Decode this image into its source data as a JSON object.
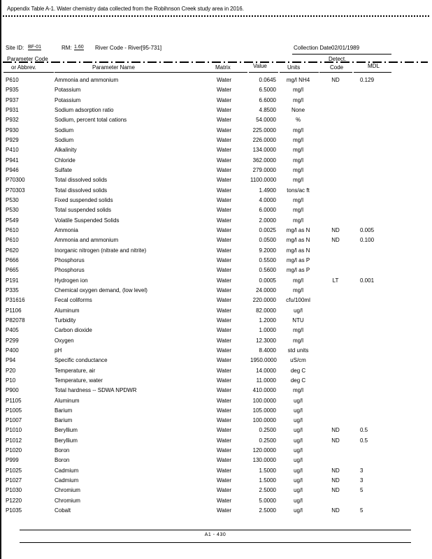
{
  "page": {
    "title": "Appendix Table A-1. Water chemistry data collected from the Robihnson Creek study area in 2016.",
    "footer": "A1 - 430"
  },
  "site_header": {
    "site_id_label": "Site ID:",
    "site_id_value": "BF-01",
    "rm_label": "RM:",
    "rm_value": "1.60",
    "river_code": "River Code - River[95-731]",
    "collection_date_label": "Collection Date",
    "collection_date_value": "02/01/1989"
  },
  "table": {
    "headers": {
      "code_line1": "Parameter Code",
      "code_line2": "or Abbrev.",
      "name": "Parameter Name",
      "matrix": "Matrix",
      "value": "Value",
      "units": "Units",
      "detect_line1": "Detect.",
      "detect_line2": "Code",
      "mdl": "MDL"
    },
    "rows": [
      {
        "code": "P610",
        "name": "Ammonia and ammonium",
        "matrix": "Water",
        "value": "0.0645",
        "units": "mg/l NH4",
        "detect": "ND",
        "mdl": "0.129"
      },
      {
        "code": "P935",
        "name": "Potassium",
        "matrix": "Water",
        "value": "6.5000",
        "units": "mg/l",
        "detect": "",
        "mdl": ""
      },
      {
        "code": "P937",
        "name": "Potassium",
        "matrix": "Water",
        "value": "6.6000",
        "units": "mg/l",
        "detect": "",
        "mdl": ""
      },
      {
        "code": "P931",
        "name": "Sodium adsorption ratio",
        "matrix": "Water",
        "value": "4.8500",
        "units": "None",
        "detect": "",
        "mdl": ""
      },
      {
        "code": "P932",
        "name": "Sodium, percent total cations",
        "matrix": "Water",
        "value": "54.0000",
        "units": "%",
        "detect": "",
        "mdl": ""
      },
      {
        "code": "P930",
        "name": "Sodium",
        "matrix": "Water",
        "value": "225.0000",
        "units": "mg/l",
        "detect": "",
        "mdl": ""
      },
      {
        "code": "P929",
        "name": "Sodium",
        "matrix": "Water",
        "value": "226.0000",
        "units": "mg/l",
        "detect": "",
        "mdl": ""
      },
      {
        "code": "P410",
        "name": "Alkalinity",
        "matrix": "Water",
        "value": "134.0000",
        "units": "mg/l",
        "detect": "",
        "mdl": ""
      },
      {
        "code": "P941",
        "name": "Chloride",
        "matrix": "Water",
        "value": "362.0000",
        "units": "mg/l",
        "detect": "",
        "mdl": ""
      },
      {
        "code": "P946",
        "name": "Sulfate",
        "matrix": "Water",
        "value": "279.0000",
        "units": "mg/l",
        "detect": "",
        "mdl": ""
      },
      {
        "code": "P70300",
        "name": "Total dissolved solids",
        "matrix": "Water",
        "value": "1100.0000",
        "units": "mg/l",
        "detect": "",
        "mdl": ""
      },
      {
        "code": "P70303",
        "name": "Total dissolved solids",
        "matrix": "Water",
        "value": "1.4900",
        "units": "tons/ac ft",
        "detect": "",
        "mdl": ""
      },
      {
        "code": "P530",
        "name": "Fixed suspended solids",
        "matrix": "Water",
        "value": "4.0000",
        "units": "mg/l",
        "detect": "",
        "mdl": ""
      },
      {
        "code": "P530",
        "name": "Total suspended solids",
        "matrix": "Water",
        "value": "6.0000",
        "units": "mg/l",
        "detect": "",
        "mdl": ""
      },
      {
        "code": "P549",
        "name": "Volatile Suspended Solids",
        "matrix": "Water",
        "value": "2.0000",
        "units": "mg/l",
        "detect": "",
        "mdl": ""
      },
      {
        "code": "P610",
        "name": "Ammonia",
        "matrix": "Water",
        "value": "0.0025",
        "units": "mg/l as N",
        "detect": "ND",
        "mdl": "0.005"
      },
      {
        "code": "P610",
        "name": "Ammonia and ammonium",
        "matrix": "Water",
        "value": "0.0500",
        "units": "mg/l as N",
        "detect": "ND",
        "mdl": "0.100"
      },
      {
        "code": "P620",
        "name": "Inorganic nitrogen (nitrate and nitrite)",
        "matrix": "Water",
        "value": "9.2000",
        "units": "mg/l as N",
        "detect": "",
        "mdl": ""
      },
      {
        "code": "P666",
        "name": "Phosphorus",
        "matrix": "Water",
        "value": "0.5500",
        "units": "mg/l as P",
        "detect": "",
        "mdl": ""
      },
      {
        "code": "P665",
        "name": "Phosphorus",
        "matrix": "Water",
        "value": "0.5600",
        "units": "mg/l as P",
        "detect": "",
        "mdl": ""
      },
      {
        "code": "P191",
        "name": "Hydrogen ion",
        "matrix": "Water",
        "value": "0.0005",
        "units": "mg/l",
        "detect": "LT",
        "mdl": "0.001"
      },
      {
        "code": "P335",
        "name": "Chemical oxygen demand, (low level)",
        "matrix": "Water",
        "value": "24.0000",
        "units": "mg/l",
        "detect": "",
        "mdl": ""
      },
      {
        "code": "P31616",
        "name": "Fecal coliforms",
        "matrix": "Water",
        "value": "220.0000",
        "units": "cfu/100ml",
        "detect": "",
        "mdl": ""
      },
      {
        "code": "P1106",
        "name": "Aluminum",
        "matrix": "Water",
        "value": "82.0000",
        "units": "ug/l",
        "detect": "",
        "mdl": ""
      },
      {
        "code": "P82078",
        "name": "Turbidity",
        "matrix": "Water",
        "value": "1.2000",
        "units": "NTU",
        "detect": "",
        "mdl": ""
      },
      {
        "code": "P405",
        "name": "Carbon dioxide",
        "matrix": "Water",
        "value": "1.0000",
        "units": "mg/l",
        "detect": "",
        "mdl": ""
      },
      {
        "code": "P299",
        "name": "Oxygen",
        "matrix": "Water",
        "value": "12.3000",
        "units": "mg/l",
        "detect": "",
        "mdl": ""
      },
      {
        "code": "P400",
        "name": "pH",
        "matrix": "Water",
        "value": "8.4000",
        "units": "std units",
        "detect": "",
        "mdl": ""
      },
      {
        "code": "P94",
        "name": "Specific conductance",
        "matrix": "Water",
        "value": "1950.0000",
        "units": "uS/cm",
        "detect": "",
        "mdl": ""
      },
      {
        "code": "P20",
        "name": "Temperature, air",
        "matrix": "Water",
        "value": "14.0000",
        "units": "deg C",
        "detect": "",
        "mdl": ""
      },
      {
        "code": "P10",
        "name": "Temperature, water",
        "matrix": "Water",
        "value": "11.0000",
        "units": "deg C",
        "detect": "",
        "mdl": ""
      },
      {
        "code": "P900",
        "name": "Total hardness -- SDWA NPDWR",
        "matrix": "Water",
        "value": "410.0000",
        "units": "mg/l",
        "detect": "",
        "mdl": ""
      },
      {
        "code": "P1105",
        "name": "Aluminum",
        "matrix": "Water",
        "value": "100.0000",
        "units": "ug/l",
        "detect": "",
        "mdl": ""
      },
      {
        "code": "P1005",
        "name": "Barium",
        "matrix": "Water",
        "value": "105.0000",
        "units": "ug/l",
        "detect": "",
        "mdl": ""
      },
      {
        "code": "P1007",
        "name": "Barium",
        "matrix": "Water",
        "value": "100.0000",
        "units": "ug/l",
        "detect": "",
        "mdl": ""
      },
      {
        "code": "P1010",
        "name": "Beryllium",
        "matrix": "Water",
        "value": "0.2500",
        "units": "ug/l",
        "detect": "ND",
        "mdl": "0.5"
      },
      {
        "code": "P1012",
        "name": "Beryllium",
        "matrix": "Water",
        "value": "0.2500",
        "units": "ug/l",
        "detect": "ND",
        "mdl": "0.5"
      },
      {
        "code": "P1020",
        "name": "Boron",
        "matrix": "Water",
        "value": "120.0000",
        "units": "ug/l",
        "detect": "",
        "mdl": ""
      },
      {
        "code": "P999",
        "name": "Boron",
        "matrix": "Water",
        "value": "130.0000",
        "units": "ug/l",
        "detect": "",
        "mdl": ""
      },
      {
        "code": "P1025",
        "name": "Cadmium",
        "matrix": "Water",
        "value": "1.5000",
        "units": "ug/l",
        "detect": "ND",
        "mdl": "3"
      },
      {
        "code": "P1027",
        "name": "Cadmium",
        "matrix": "Water",
        "value": "1.5000",
        "units": "ug/l",
        "detect": "ND",
        "mdl": "3"
      },
      {
        "code": "P1030",
        "name": "Chromium",
        "matrix": "Water",
        "value": "2.5000",
        "units": "ug/l",
        "detect": "ND",
        "mdl": "5"
      },
      {
        "code": "P1220",
        "name": "Chromium",
        "matrix": "Water",
        "value": "5.0000",
        "units": "ug/l",
        "detect": "",
        "mdl": ""
      },
      {
        "code": "P1035",
        "name": "Cobalt",
        "matrix": "Water",
        "value": "2.5000",
        "units": "ug/l",
        "detect": "ND",
        "mdl": "5"
      }
    ]
  }
}
